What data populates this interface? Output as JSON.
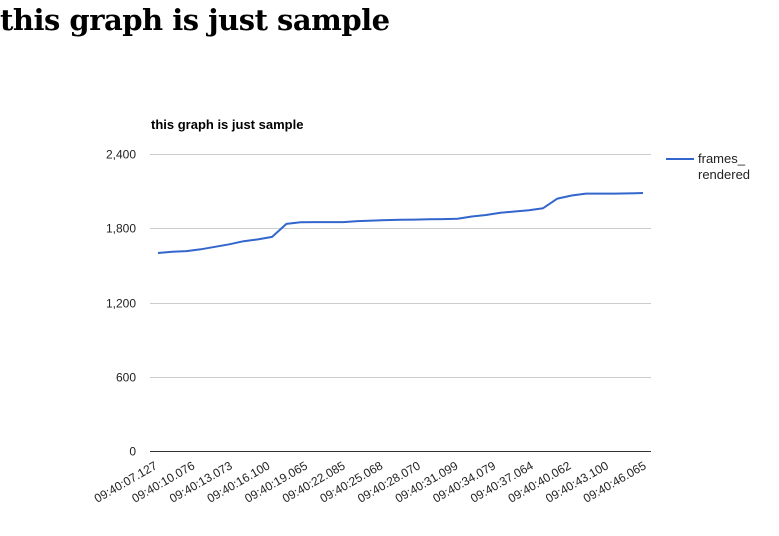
{
  "page": {
    "heading": "this graph is just sample"
  },
  "chart_data": {
    "type": "line",
    "title": "this graph is just sample",
    "xlabel": "",
    "ylabel": "",
    "ylim": [
      0,
      2400
    ],
    "y_ticks": [
      0,
      600,
      1200,
      1800,
      2400
    ],
    "y_tick_labels": [
      "0",
      "600",
      "1,200",
      "1,800",
      "2,400"
    ],
    "grid": true,
    "legend_position": "right",
    "x_tick_labels": [
      "09:40:07.127",
      "09:40:10.076",
      "09:40:13.073",
      "09:40:16.100",
      "09:40:19.065",
      "09:40:22.085",
      "09:40:25.068",
      "09:40:28.070",
      "09:40:31.099",
      "09:40:34.079",
      "09:40:37.064",
      "09:40:40.062",
      "09:40:43.100",
      "09:40:46.065"
    ],
    "series": [
      {
        "name": "frames_ rendered",
        "color": "#3366cc",
        "values": [
          1600,
          1610,
          1615,
          1630,
          1650,
          1670,
          1695,
          1710,
          1730,
          1835,
          1848,
          1850,
          1850,
          1850,
          1858,
          1862,
          1866,
          1868,
          1870,
          1872,
          1874,
          1877,
          1895,
          1907,
          1925,
          1935,
          1945,
          1962,
          2040,
          2065,
          2080,
          2080,
          2080,
          2082,
          2085
        ]
      }
    ]
  }
}
